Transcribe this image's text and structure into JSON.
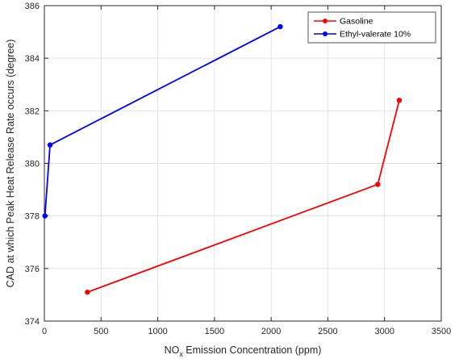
{
  "chart_data": {
    "type": "line",
    "xlabel": {
      "main": "NO",
      "sub": "x",
      "rest": " Emission Concentration (ppm)"
    },
    "ylabel": "CAD at which Peak Heat Release Rate occurs (degree)",
    "xlim": [
      0,
      3500
    ],
    "ylim": [
      374,
      386
    ],
    "xticks": [
      0,
      500,
      1000,
      1500,
      2000,
      2500,
      3000,
      3500
    ],
    "yticks": [
      374,
      376,
      378,
      380,
      382,
      384,
      386
    ],
    "grid": true,
    "legend_position": "top-right",
    "series": [
      {
        "name": "Gasoline",
        "color": "#ff0000",
        "marker": "circle",
        "points": [
          [
            380,
            375.1
          ],
          [
            2940,
            379.2
          ],
          [
            3130,
            382.4
          ]
        ]
      },
      {
        "name": "Ethyl-valerate 10%",
        "color": "#0000ff",
        "marker": "circle",
        "points": [
          [
            5,
            378.0
          ],
          [
            50,
            380.7
          ],
          [
            2080,
            385.2
          ]
        ]
      }
    ]
  }
}
